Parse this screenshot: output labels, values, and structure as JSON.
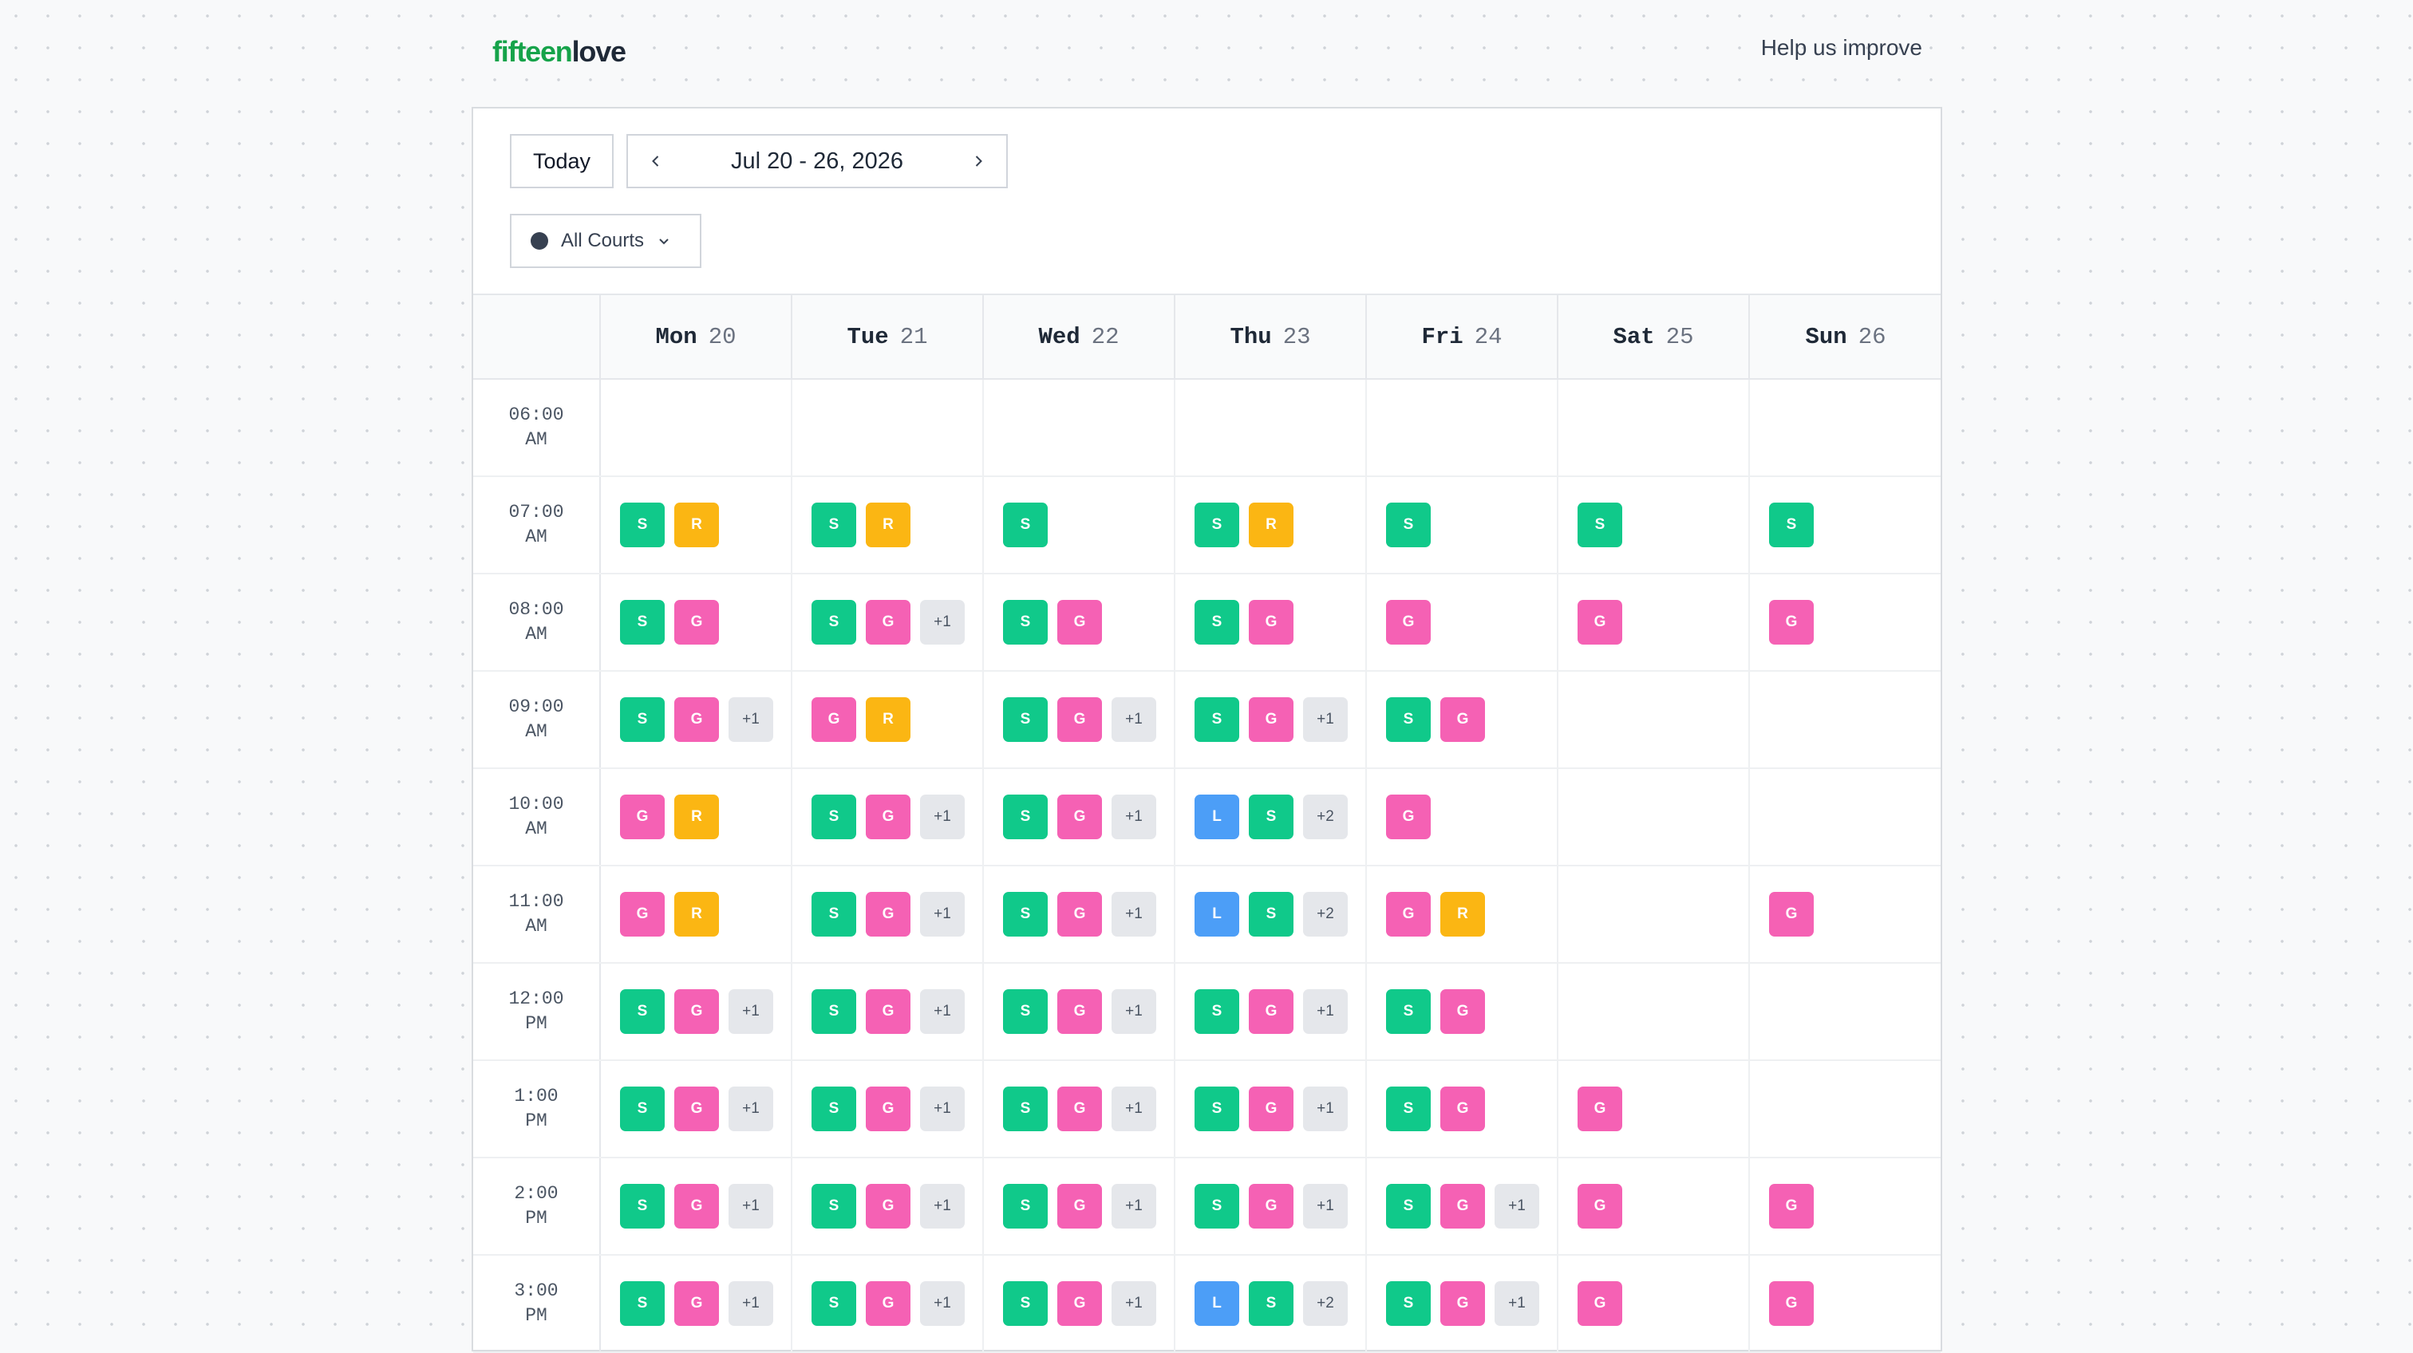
{
  "header": {
    "logo_part1": "fifteen",
    "logo_part2": "love",
    "help_link": "Help us improve"
  },
  "toolbar": {
    "today_label": "Today",
    "date_range": "Jul 20 - 26, 2026",
    "courts_filter": "All Courts"
  },
  "colors": {
    "S": "#10c98a",
    "G": "#f561b4",
    "R": "#fbb613",
    "L": "#4c9ef7",
    "more": "#e5e7eb",
    "logo_green": "#16a34a"
  },
  "days": [
    {
      "name": "Mon",
      "date": "20"
    },
    {
      "name": "Tue",
      "date": "21"
    },
    {
      "name": "Wed",
      "date": "22"
    },
    {
      "name": "Thu",
      "date": "23"
    },
    {
      "name": "Fri",
      "date": "24"
    },
    {
      "name": "Sat",
      "date": "25"
    },
    {
      "name": "Sun",
      "date": "26"
    }
  ],
  "rows": [
    {
      "time": "06:00",
      "period": "AM",
      "cells": [
        [],
        [],
        [],
        [],
        [],
        [],
        []
      ]
    },
    {
      "time": "07:00",
      "period": "AM",
      "cells": [
        [
          "S",
          "R"
        ],
        [
          "S",
          "R"
        ],
        [
          "S"
        ],
        [
          "S",
          "R"
        ],
        [
          "S"
        ],
        [
          "S"
        ],
        [
          "S"
        ]
      ]
    },
    {
      "time": "08:00",
      "period": "AM",
      "cells": [
        [
          "S",
          "G"
        ],
        [
          "S",
          "G",
          "+1"
        ],
        [
          "S",
          "G"
        ],
        [
          "S",
          "G"
        ],
        [
          "G"
        ],
        [
          "G"
        ],
        [
          "G"
        ]
      ]
    },
    {
      "time": "09:00",
      "period": "AM",
      "cells": [
        [
          "S",
          "G",
          "+1"
        ],
        [
          "G",
          "R"
        ],
        [
          "S",
          "G",
          "+1"
        ],
        [
          "S",
          "G",
          "+1"
        ],
        [
          "S",
          "G"
        ],
        [],
        []
      ]
    },
    {
      "time": "10:00",
      "period": "AM",
      "cells": [
        [
          "G",
          "R"
        ],
        [
          "S",
          "G",
          "+1"
        ],
        [
          "S",
          "G",
          "+1"
        ],
        [
          "L",
          "S",
          "+2"
        ],
        [
          "G"
        ],
        [],
        []
      ]
    },
    {
      "time": "11:00",
      "period": "AM",
      "cells": [
        [
          "G",
          "R"
        ],
        [
          "S",
          "G",
          "+1"
        ],
        [
          "S",
          "G",
          "+1"
        ],
        [
          "L",
          "S",
          "+2"
        ],
        [
          "G",
          "R"
        ],
        [],
        [
          "G"
        ]
      ]
    },
    {
      "time": "12:00",
      "period": "PM",
      "cells": [
        [
          "S",
          "G",
          "+1"
        ],
        [
          "S",
          "G",
          "+1"
        ],
        [
          "S",
          "G",
          "+1"
        ],
        [
          "S",
          "G",
          "+1"
        ],
        [
          "S",
          "G"
        ],
        [],
        []
      ]
    },
    {
      "time": "1:00",
      "period": "PM",
      "cells": [
        [
          "S",
          "G",
          "+1"
        ],
        [
          "S",
          "G",
          "+1"
        ],
        [
          "S",
          "G",
          "+1"
        ],
        [
          "S",
          "G",
          "+1"
        ],
        [
          "S",
          "G"
        ],
        [
          "G"
        ],
        []
      ]
    },
    {
      "time": "2:00",
      "period": "PM",
      "cells": [
        [
          "S",
          "G",
          "+1"
        ],
        [
          "S",
          "G",
          "+1"
        ],
        [
          "S",
          "G",
          "+1"
        ],
        [
          "S",
          "G",
          "+1"
        ],
        [
          "S",
          "G",
          "+1"
        ],
        [
          "G"
        ],
        [
          "G"
        ]
      ]
    },
    {
      "time": "3:00",
      "period": "PM",
      "cells": [
        [
          "S",
          "G",
          "+1"
        ],
        [
          "S",
          "G",
          "+1"
        ],
        [
          "S",
          "G",
          "+1"
        ],
        [
          "L",
          "S",
          "+2"
        ],
        [
          "S",
          "G",
          "+1"
        ],
        [
          "G"
        ],
        [
          "G"
        ]
      ]
    }
  ]
}
